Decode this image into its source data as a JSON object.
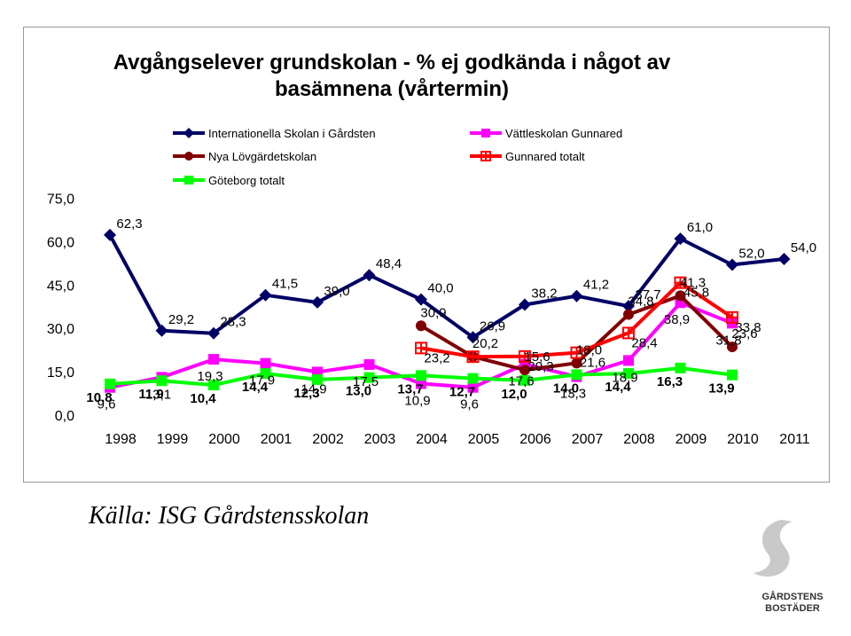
{
  "chart_data": {
    "type": "line",
    "title": "Avgångselever grundskolan - % ej godkända i något av basämnena (vårtermin)",
    "categories": [
      "1998",
      "1999",
      "2000",
      "2001",
      "2002",
      "2003",
      "2004",
      "2005",
      "2006",
      "2007",
      "2008",
      "2009",
      "2010",
      "2011"
    ],
    "y_ticks": [
      "0,0",
      "15,0",
      "30,0",
      "45,0",
      "60,0",
      "75,0"
    ],
    "ylim": [
      0,
      75
    ],
    "legend_position": "top",
    "grid": false,
    "series": [
      {
        "name": "Internationella Skolan i Gårdsten",
        "color": "#000066",
        "marker": "diamond",
        "values": [
          62.3,
          29.2,
          28.3,
          41.5,
          39.0,
          48.4,
          40.0,
          26.9,
          38.2,
          41.2,
          37.7,
          61.0,
          52.0,
          54.0
        ],
        "labels": [
          "62,3",
          "29,2",
          "28,3",
          "41,5",
          "39,0",
          "48,4",
          "40,0",
          "26,9",
          "38,2",
          "41,2",
          "37,7",
          "61,0",
          "52,0",
          "54,0"
        ]
      },
      {
        "name": "Vättleskolan Gunnared",
        "color": "#ff00ff",
        "marker": "square",
        "values": [
          9.6,
          13.1,
          19.3,
          17.9,
          14.9,
          17.5,
          10.9,
          9.6,
          17.6,
          13.3,
          18.9,
          38.9,
          31.8,
          null
        ],
        "labels": [
          "9,6",
          "13,1",
          "19,3",
          "17,9",
          "14,9",
          "17,5",
          "10,9",
          "9,6",
          "17,6",
          "13,3",
          "18,9",
          "38,9",
          "31,8",
          ""
        ]
      },
      {
        "name": "Nya Lövgärdetskolan",
        "color": "#800000",
        "marker": "circle",
        "values": [
          null,
          null,
          null,
          null,
          null,
          null,
          30.9,
          20.2,
          15.6,
          18.0,
          34.8,
          41.3,
          23.6,
          null
        ],
        "labels": [
          "",
          "",
          "",
          "",
          "",
          "",
          "30,9",
          "20,2",
          "15,6",
          "18,0",
          "34,8",
          "41,3",
          "23,6",
          ""
        ]
      },
      {
        "name": "Gunnared totalt",
        "color": "#ff0000",
        "marker": "cross",
        "values": [
          null,
          null,
          null,
          null,
          null,
          null,
          23.2,
          20.2,
          20.3,
          21.6,
          28.4,
          45.8,
          33.8,
          null
        ],
        "labels": [
          "",
          "",
          "",
          "",
          "",
          "",
          "23,2",
          "",
          "20,3",
          "21,6",
          "28,4",
          "45,8",
          "33,8",
          ""
        ]
      },
      {
        "name": "Göteborg totalt",
        "color": "#00ff00",
        "marker": "square",
        "values": [
          10.8,
          11.9,
          10.4,
          14.4,
          12.3,
          13.0,
          13.7,
          12.7,
          12.0,
          14.0,
          14.4,
          16.3,
          13.9,
          null
        ],
        "labels": [
          "10,8",
          "11,9",
          "10,4",
          "14,4",
          "12,3",
          "13,0",
          "13,7",
          "12,7",
          "12,0",
          "14,0",
          "14,4",
          "16,3",
          "13,9",
          ""
        ]
      }
    ]
  },
  "source_text": "Källa: ISG Gårdstensskolan",
  "logo": {
    "line1": "GÅRDSTENS",
    "line2": "BOSTÄDER"
  }
}
